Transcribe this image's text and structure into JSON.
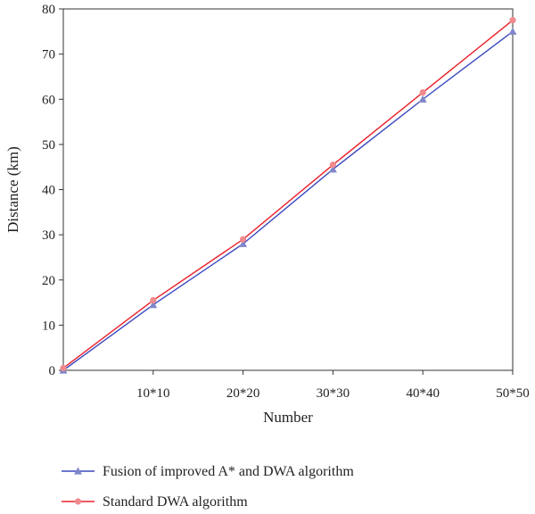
{
  "chart_data": {
    "type": "line",
    "title": "",
    "xlabel": "Number",
    "ylabel": "Distance (km)",
    "categories": [
      "",
      "10*10",
      "20*20",
      "30*30",
      "40*40",
      "50*50"
    ],
    "ylim": [
      0,
      80
    ],
    "yticks": [
      "0",
      "10",
      "20",
      "30",
      "40",
      "50",
      "60",
      "70",
      "80"
    ],
    "grid": false,
    "legend_position": "bottom",
    "series": [
      {
        "name": "Fusion of improved A* and DWA algorithm",
        "color": "#3b49c0",
        "marker": "triangle",
        "marker_color": "#7f86c9",
        "values": [
          0,
          14.5,
          28,
          44.5,
          60,
          75
        ]
      },
      {
        "name": "Standard DWA algorithm",
        "color": "#e8202a",
        "marker": "circle",
        "marker_color": "#f08a8e",
        "values": [
          0.5,
          15.5,
          29,
          45.5,
          61.5,
          77.5
        ]
      }
    ]
  }
}
